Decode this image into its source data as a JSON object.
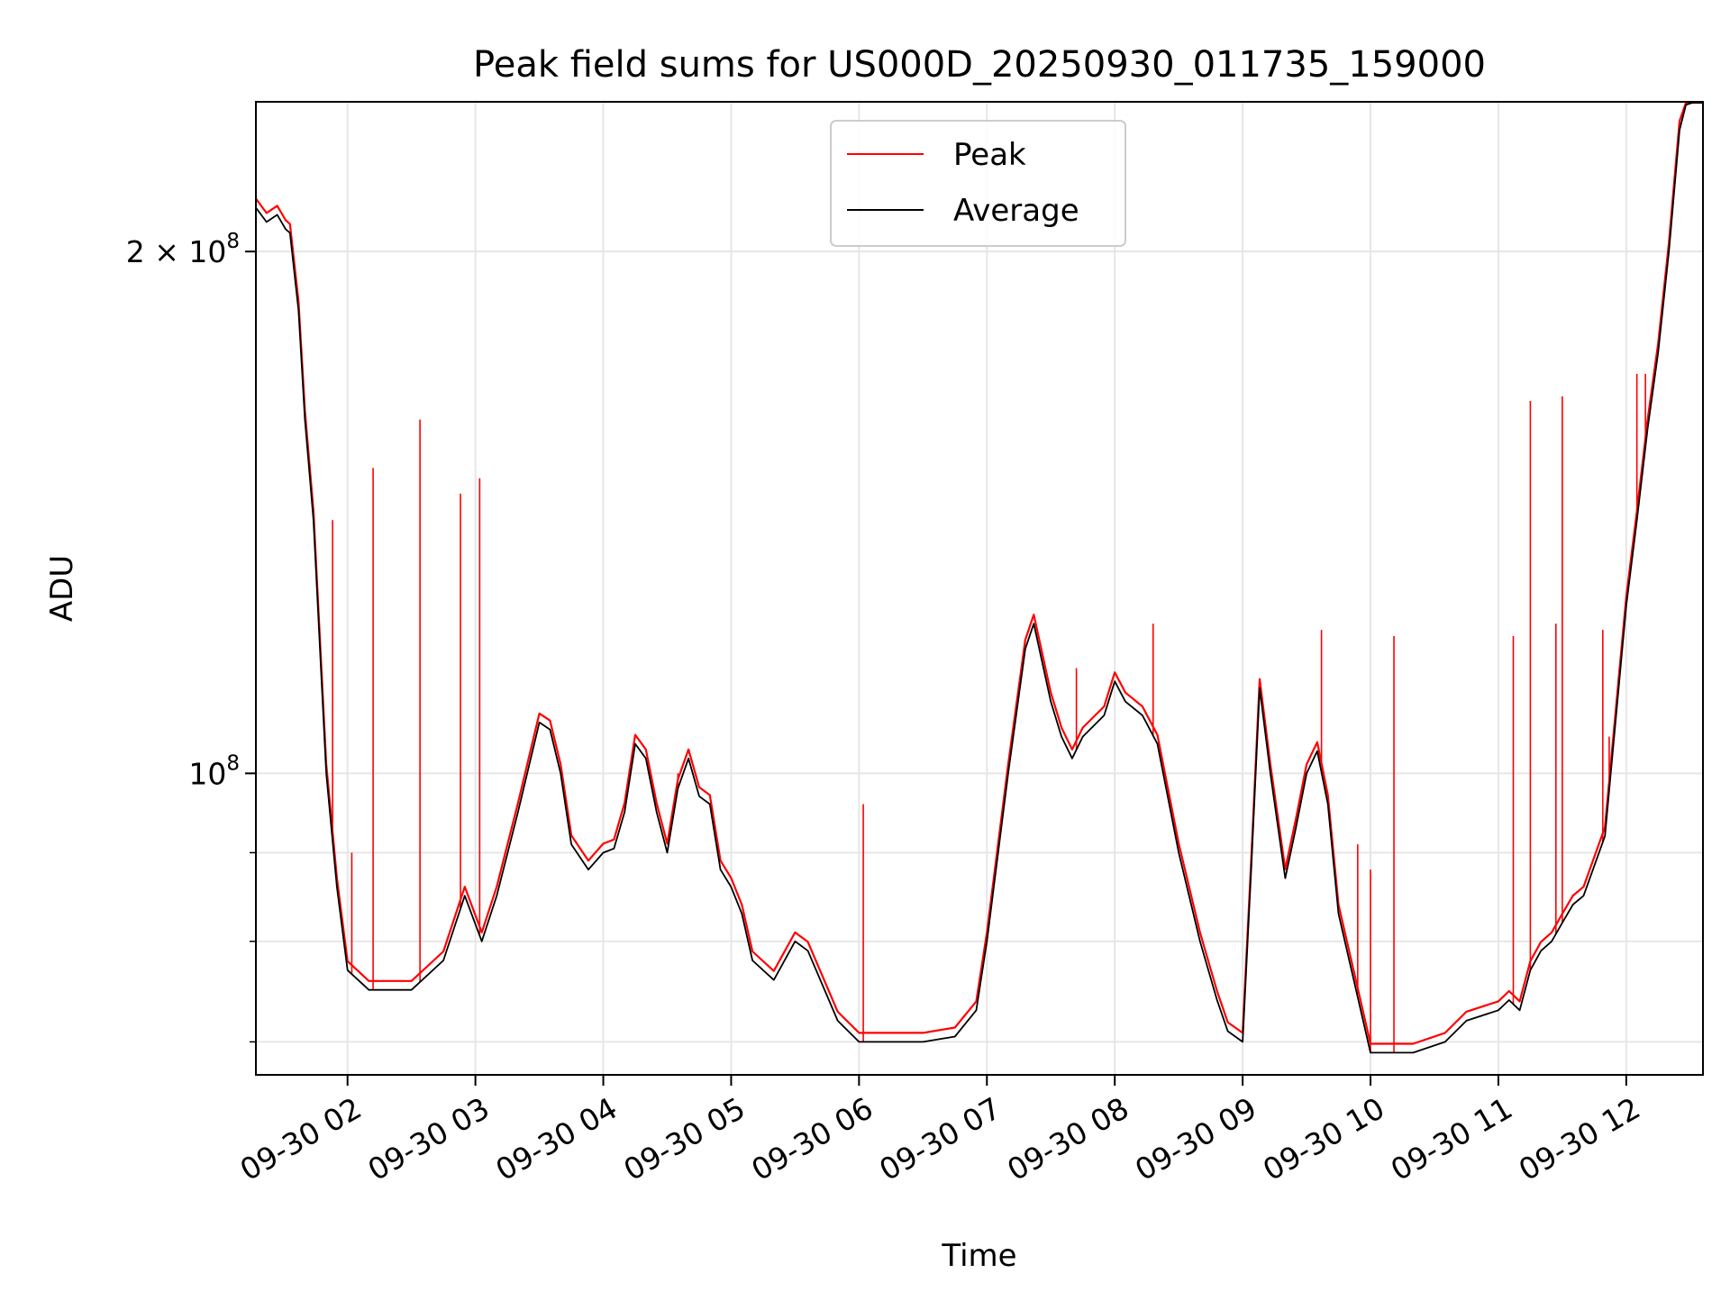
{
  "chart_data": {
    "type": "line",
    "title": "Peak field sums for US000D_20250930_011735_159000",
    "xlabel": "Time",
    "ylabel": "ADU",
    "y_scale": "log",
    "ylim": [
      67000000,
      244000000
    ],
    "xlim": [
      "2025-09-30 01:17",
      "2025-09-30 12:36"
    ],
    "grid": true,
    "legend_position": "upper-center",
    "x_tick_labels": [
      "09-30 02",
      "09-30 03",
      "09-30 04",
      "09-30 05",
      "09-30 06",
      "09-30 07",
      "09-30 08",
      "09-30 09",
      "09-30 10",
      "09-30 11",
      "09-30 12"
    ],
    "x_tick_times": [
      "2025-09-30 02:00",
      "2025-09-30 03:00",
      "2025-09-30 04:00",
      "2025-09-30 05:00",
      "2025-09-30 06:00",
      "2025-09-30 07:00",
      "2025-09-30 08:00",
      "2025-09-30 09:00",
      "2025-09-30 10:00",
      "2025-09-30 11:00",
      "2025-09-30 12:00"
    ],
    "y_major_ticks": [
      {
        "value": 100000000,
        "base": "10",
        "exp": "8"
      },
      {
        "value": 200000000,
        "base": "2 × 10",
        "exp": "8"
      }
    ],
    "y_minor_ticks": [
      70000000,
      80000000,
      90000000
    ],
    "series": [
      {
        "name": "Average",
        "color": "#000000",
        "x": [
          "2025-09-30 01:17",
          "2025-09-30 01:22",
          "2025-09-30 01:27",
          "2025-09-30 01:31",
          "2025-09-30 01:33",
          "2025-09-30 01:37",
          "2025-09-30 01:40",
          "2025-09-30 01:44",
          "2025-09-30 01:48",
          "2025-09-30 01:50",
          "2025-09-30 01:55",
          "2025-09-30 02:00",
          "2025-09-30 02:10",
          "2025-09-30 02:30",
          "2025-09-30 02:45",
          "2025-09-30 02:55",
          "2025-09-30 03:03",
          "2025-09-30 03:10",
          "2025-09-30 03:20",
          "2025-09-30 03:30",
          "2025-09-30 03:35",
          "2025-09-30 03:40",
          "2025-09-30 03:45",
          "2025-09-30 03:53",
          "2025-09-30 04:00",
          "2025-09-30 04:05",
          "2025-09-30 04:10",
          "2025-09-30 04:15",
          "2025-09-30 04:20",
          "2025-09-30 04:25",
          "2025-09-30 04:30",
          "2025-09-30 04:35",
          "2025-09-30 04:40",
          "2025-09-30 04:45",
          "2025-09-30 04:50",
          "2025-09-30 04:55",
          "2025-09-30 05:00",
          "2025-09-30 05:05",
          "2025-09-30 05:10",
          "2025-09-30 05:20",
          "2025-09-30 05:30",
          "2025-09-30 05:36",
          "2025-09-30 05:50",
          "2025-09-30 06:00",
          "2025-09-30 06:30",
          "2025-09-30 06:45",
          "2025-09-30 06:55",
          "2025-09-30 07:00",
          "2025-09-30 07:10",
          "2025-09-30 07:18",
          "2025-09-30 07:22",
          "2025-09-30 07:30",
          "2025-09-30 07:35",
          "2025-09-30 07:40",
          "2025-09-30 07:45",
          "2025-09-30 07:55",
          "2025-09-30 08:00",
          "2025-09-30 08:05",
          "2025-09-30 08:13",
          "2025-09-30 08:20",
          "2025-09-30 08:30",
          "2025-09-30 08:40",
          "2025-09-30 08:48",
          "2025-09-30 08:53",
          "2025-09-30 09:00",
          "2025-09-30 09:04",
          "2025-09-30 09:08",
          "2025-09-30 09:13",
          "2025-09-30 09:20",
          "2025-09-30 09:25",
          "2025-09-30 09:30",
          "2025-09-30 09:35",
          "2025-09-30 09:40",
          "2025-09-30 09:45",
          "2025-09-30 10:00",
          "2025-09-30 10:20",
          "2025-09-30 10:35",
          "2025-09-30 10:45",
          "2025-09-30 11:00",
          "2025-09-30 11:05",
          "2025-09-30 11:10",
          "2025-09-30 11:15",
          "2025-09-30 11:20",
          "2025-09-30 11:25",
          "2025-09-30 11:30",
          "2025-09-30 11:35",
          "2025-09-30 11:40",
          "2025-09-30 11:50",
          "2025-09-30 12:00",
          "2025-09-30 12:05",
          "2025-09-30 12:10",
          "2025-09-30 12:15",
          "2025-09-30 12:20",
          "2025-09-30 12:25",
          "2025-09-30 12:28",
          "2025-09-30 12:31",
          "2025-09-30 12:36"
        ],
        "values": [
          212000000,
          208000000,
          210000000,
          206000000,
          205000000,
          185000000,
          160000000,
          140000000,
          112000000,
          100000000,
          86000000,
          77000000,
          75000000,
          75000000,
          78000000,
          85000000,
          80000000,
          85000000,
          95000000,
          107000000,
          106000000,
          100000000,
          91000000,
          88000000,
          90000000,
          90500000,
          95000000,
          104000000,
          102000000,
          95000000,
          90000000,
          98000000,
          102000000,
          97000000,
          96000000,
          88000000,
          86000000,
          83000000,
          78000000,
          76000000,
          80000000,
          79000000,
          72000000,
          70000000,
          70000000,
          70500000,
          73000000,
          80000000,
          100000000,
          118000000,
          122000000,
          110000000,
          105000000,
          102000000,
          105000000,
          108000000,
          113000000,
          110000000,
          108000000,
          104000000,
          90000000,
          80000000,
          74000000,
          71000000,
          70000000,
          88000000,
          112000000,
          100000000,
          87000000,
          93000000,
          100000000,
          103000000,
          96000000,
          83000000,
          69000000,
          69000000,
          70000000,
          72000000,
          73000000,
          74000000,
          73000000,
          77000000,
          79000000,
          80000000,
          82000000,
          84000000,
          85000000,
          92000000,
          125000000,
          140000000,
          158000000,
          175000000,
          200000000,
          235000000,
          243000000,
          244000000,
          244000000
        ]
      },
      {
        "name": "Peak",
        "color": "#ff0000",
        "spikes": [
          {
            "x": "2025-09-30 01:53",
            "value": 140000000
          },
          {
            "x": "2025-09-30 02:02",
            "value": 90000000
          },
          {
            "x": "2025-09-30 02:12",
            "value": 150000000
          },
          {
            "x": "2025-09-30 02:34",
            "value": 160000000
          },
          {
            "x": "2025-09-30 02:53",
            "value": 145000000
          },
          {
            "x": "2025-09-30 03:02",
            "value": 148000000
          },
          {
            "x": "2025-09-30 04:35",
            "value": 100000000
          },
          {
            "x": "2025-09-30 06:02",
            "value": 96000000
          },
          {
            "x": "2025-09-30 07:42",
            "value": 115000000
          },
          {
            "x": "2025-09-30 08:18",
            "value": 122000000
          },
          {
            "x": "2025-09-30 09:37",
            "value": 121000000
          },
          {
            "x": "2025-09-30 09:44",
            "value": 86000000
          },
          {
            "x": "2025-09-30 09:54",
            "value": 91000000
          },
          {
            "x": "2025-09-30 10:00",
            "value": 88000000
          },
          {
            "x": "2025-09-30 10:11",
            "value": 120000000
          },
          {
            "x": "2025-09-30 11:07",
            "value": 120000000
          },
          {
            "x": "2025-09-30 11:15",
            "value": 164000000
          },
          {
            "x": "2025-09-30 11:27",
            "value": 122000000
          },
          {
            "x": "2025-09-30 11:30",
            "value": 165000000
          },
          {
            "x": "2025-09-30 11:49",
            "value": 121000000
          },
          {
            "x": "2025-09-30 11:52",
            "value": 105000000
          },
          {
            "x": "2025-09-30 12:05",
            "value": 170000000
          },
          {
            "x": "2025-09-30 12:09",
            "value": 170000000
          },
          {
            "x": "2025-09-30 12:20",
            "value": 200000000
          }
        ]
      }
    ],
    "legend": [
      {
        "label": "Peak",
        "color": "#ff0000"
      },
      {
        "label": "Average",
        "color": "#000000"
      }
    ]
  }
}
